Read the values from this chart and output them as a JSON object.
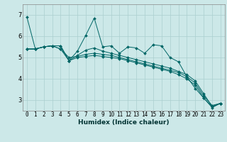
{
  "xlabel": "Humidex (Indice chaleur)",
  "ylabel": "",
  "x_ticks": [
    0,
    1,
    2,
    3,
    4,
    5,
    6,
    7,
    8,
    9,
    10,
    11,
    12,
    13,
    14,
    15,
    16,
    17,
    18,
    19,
    20,
    21,
    22,
    23
  ],
  "y_ticks": [
    3,
    4,
    5,
    6,
    7
  ],
  "ylim": [
    2.5,
    7.5
  ],
  "xlim": [
    -0.5,
    23.5
  ],
  "bg_color": "#cce8e8",
  "grid_color": "#aacfcf",
  "line_color": "#006666",
  "line1": [
    6.9,
    5.4,
    5.5,
    5.55,
    5.55,
    4.85,
    5.3,
    6.05,
    6.85,
    5.5,
    5.55,
    5.2,
    5.5,
    5.45,
    5.2,
    5.6,
    5.55,
    5.0,
    4.8,
    4.1,
    3.55,
    3.1,
    2.65,
    2.85
  ],
  "line2": [
    5.4,
    5.4,
    5.5,
    5.55,
    5.55,
    4.85,
    5.1,
    5.35,
    5.45,
    5.3,
    5.2,
    5.1,
    5.0,
    4.9,
    4.8,
    4.7,
    4.6,
    4.5,
    4.35,
    4.2,
    3.9,
    3.3,
    2.7,
    2.85
  ],
  "line3": [
    5.4,
    5.4,
    5.5,
    5.55,
    5.4,
    5.0,
    5.05,
    5.15,
    5.2,
    5.15,
    5.1,
    5.0,
    4.9,
    4.8,
    4.7,
    4.6,
    4.5,
    4.4,
    4.3,
    4.1,
    3.8,
    3.2,
    2.75,
    2.85
  ],
  "line4": [
    5.4,
    5.4,
    5.5,
    5.55,
    5.4,
    4.85,
    5.0,
    5.05,
    5.1,
    5.05,
    5.0,
    4.95,
    4.85,
    4.75,
    4.65,
    4.55,
    4.45,
    4.35,
    4.2,
    4.0,
    3.7,
    3.1,
    2.7,
    2.85
  ],
  "tick_fontsize": 5.5,
  "xlabel_fontsize": 6.5,
  "marker_size": 2.0,
  "linewidth": 0.7
}
